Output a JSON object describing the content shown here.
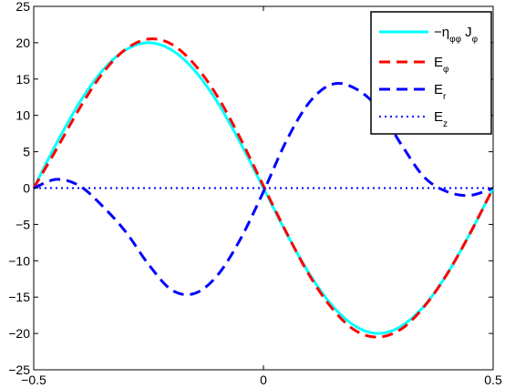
{
  "chart_data": {
    "type": "line",
    "title": "",
    "xlabel": "",
    "ylabel": "",
    "xlim": [
      -0.5,
      0.5
    ],
    "ylim": [
      -25,
      25
    ],
    "x_ticks": [
      -0.5,
      0,
      0.5
    ],
    "x_tick_labels": [
      "−0.5",
      "0",
      "0.5"
    ],
    "y_ticks": [
      -25,
      -20,
      -15,
      -10,
      -5,
      0,
      5,
      10,
      15,
      20,
      25
    ],
    "y_tick_labels": [
      "−25",
      "−20",
      "−15",
      "−10",
      "−5",
      "0",
      "5",
      "10",
      "15",
      "20",
      "25"
    ],
    "grid": false,
    "legend_position": "top-right",
    "x": [
      -0.5,
      -0.45,
      -0.4,
      -0.35,
      -0.3,
      -0.25,
      -0.2,
      -0.15,
      -0.1,
      -0.05,
      0,
      0.05,
      0.1,
      0.15,
      0.2,
      0.25,
      0.3,
      0.35,
      0.4,
      0.45,
      0.5
    ],
    "series": [
      {
        "name": "−η_φφ J_φ",
        "legend_main": "−η",
        "legend_sub1": "φφ",
        "legend_mid": "J",
        "legend_sub2": "φ",
        "color": "#00ffff",
        "style": "solid",
        "values": [
          0,
          6.2,
          11.8,
          16.2,
          19.0,
          20.0,
          19.0,
          16.2,
          11.8,
          6.2,
          0,
          -6.2,
          -11.8,
          -16.2,
          -19.0,
          -20.0,
          -19.0,
          -16.2,
          -11.8,
          -6.2,
          0
        ]
      },
      {
        "name": "E_φ",
        "legend_main": "E",
        "legend_sub1": "φ",
        "color": "#ff0000",
        "style": "dashed",
        "values": [
          0,
          5.4,
          11.0,
          15.8,
          19.1,
          20.5,
          19.8,
          17.0,
          12.6,
          6.8,
          0.3,
          -6.1,
          -12.0,
          -16.6,
          -19.6,
          -20.5,
          -19.4,
          -16.3,
          -11.8,
          -6.2,
          0
        ]
      },
      {
        "name": "E_r",
        "legend_main": "E",
        "legend_sub1": "r",
        "color": "#0000ff",
        "style": "dashed",
        "values": [
          0,
          1.2,
          0.3,
          -2.5,
          -6.0,
          -10.5,
          -14.0,
          -14.5,
          -12.0,
          -7.0,
          -0.5,
          6.5,
          11.8,
          14.3,
          13.7,
          11.0,
          6.0,
          1.5,
          -0.5,
          -1.0,
          0
        ]
      },
      {
        "name": "E_z",
        "legend_main": "E",
        "legend_sub1": "z",
        "color": "#0000ff",
        "style": "dotted",
        "values": [
          0,
          0,
          0,
          0,
          0,
          0,
          0,
          0,
          0,
          0,
          0,
          0,
          0,
          0,
          0,
          0,
          0,
          0,
          0,
          0,
          0
        ]
      }
    ]
  }
}
